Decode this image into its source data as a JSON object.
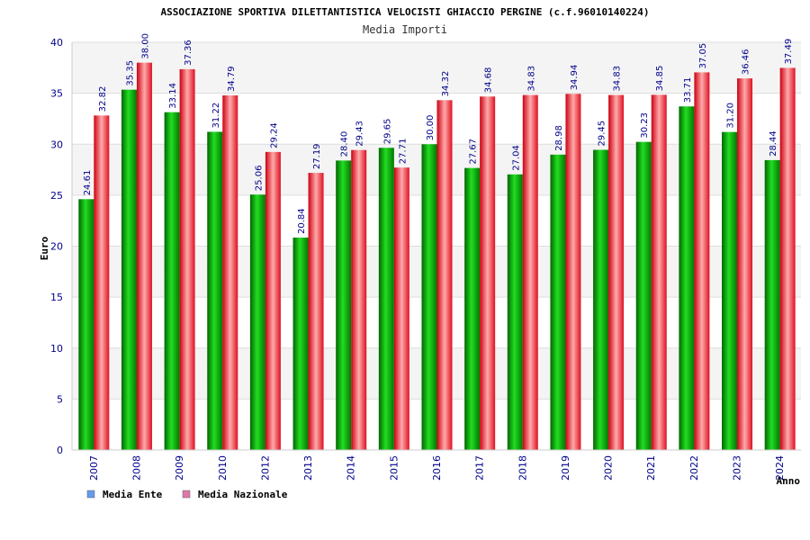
{
  "chart_data": {
    "type": "bar",
    "title": "ASSOCIAZIONE SPORTIVA DILETTANTISTICA VELOCISTI GHIACCIO PERGINE (c.f.96010140224)",
    "subtitle": "Media Importi",
    "ylabel": "Euro",
    "xlabel": "Anno",
    "ylim": [
      0,
      40
    ],
    "yticks": [
      0,
      5,
      10,
      15,
      20,
      25,
      30,
      35,
      40
    ],
    "grid": true,
    "legend_position": "bottom-left",
    "categories": [
      "2007",
      "2008",
      "2009",
      "2010",
      "2012",
      "2013",
      "2014",
      "2015",
      "2016",
      "2017",
      "2018",
      "2019",
      "2020",
      "2021",
      "2022",
      "2023",
      "2024"
    ],
    "series": [
      {
        "name": "Media Ente",
        "color": "#00aa00",
        "legend_color": "#6699ee",
        "values": [
          24.61,
          35.35,
          33.14,
          31.22,
          25.06,
          20.84,
          28.4,
          29.65,
          30.0,
          27.67,
          27.04,
          28.98,
          29.45,
          30.23,
          33.71,
          31.2,
          28.44
        ],
        "labels": [
          "24.61",
          "35.35",
          "33.14",
          "31.22",
          "25.06",
          "20.84",
          "28.40",
          "29.65",
          "30.00",
          "27.67",
          "27.04",
          "28.98",
          "29.45",
          "30.23",
          "33.71",
          "31.20",
          "28.44"
        ]
      },
      {
        "name": "Media Nazionale",
        "color": "#ee2233",
        "legend_color": "#dd77aa",
        "values": [
          32.82,
          38.0,
          37.36,
          34.79,
          29.24,
          27.19,
          29.43,
          27.71,
          34.32,
          34.68,
          34.83,
          34.94,
          34.83,
          34.85,
          37.05,
          36.46,
          37.49
        ],
        "labels": [
          "32.82",
          "38.00",
          "37.36",
          "34.79",
          "29.24",
          "27.19",
          "29.43",
          "27.71",
          "34.32",
          "34.68",
          "34.83",
          "34.94",
          "34.83",
          "34.85",
          "37.05",
          "36.46",
          "37.49"
        ]
      }
    ]
  }
}
